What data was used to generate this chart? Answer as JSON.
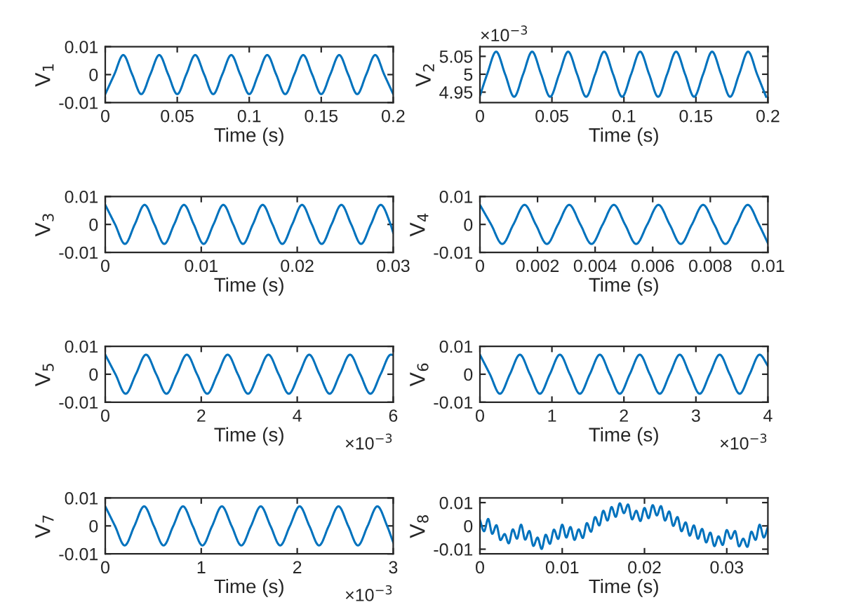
{
  "chart_data": [
    {
      "type": "line",
      "xlabel": "Time (s)",
      "ylabel": "V$_{1}$",
      "color": "#0072bd",
      "xlim": [
        0,
        0.2
      ],
      "ylim": [
        -0.01,
        0.01
      ],
      "xticks": [
        0,
        0.05,
        0.1,
        0.15,
        0.2
      ],
      "yticks": [
        -0.01,
        0,
        0.01
      ],
      "x": [
        0,
        0.00625,
        0.0125,
        0.01875,
        0.025,
        0.03125,
        0.0375,
        0.04375,
        0.05,
        0.05625,
        0.0625,
        0.06875,
        0.075,
        0.08125,
        0.0875,
        0.09375,
        0.1,
        0.10625,
        0.1125,
        0.11875,
        0.125,
        0.13125,
        0.1375,
        0.14375,
        0.15,
        0.15625,
        0.1625,
        0.16875,
        0.175,
        0.18125,
        0.1875,
        0.19375,
        0.2
      ],
      "values": [
        -0.007,
        0,
        0.007,
        0,
        -0.007,
        0,
        0.007,
        0,
        -0.007,
        0,
        0.007,
        0,
        -0.007,
        0,
        0.007,
        0,
        -0.007,
        0,
        0.007,
        0,
        -0.007,
        0,
        0.007,
        0,
        -0.007,
        0,
        0.007,
        0,
        -0.007,
        0,
        0.007,
        0,
        -0.007
      ]
    },
    {
      "type": "line",
      "xlabel": "Time (s)",
      "ylabel": "V$_{2}$",
      "color": "#0072bd",
      "xlim": [
        0,
        0.2
      ],
      "ylim": [
        4.921,
        5.077
      ],
      "xticks": [
        0,
        0.05,
        0.1,
        0.15,
        0.2
      ],
      "yticks": [
        4.95,
        5,
        5.05
      ],
      "annotations": [
        "×10$^{−3}$"
      ],
      "x": [
        0,
        0.005,
        0.01125,
        0.0175,
        0.02375,
        0.03,
        0.03625,
        0.0425,
        0.04875,
        0.055,
        0.06125,
        0.0675,
        0.07375,
        0.08,
        0.08625,
        0.0925,
        0.09875,
        0.105,
        0.11125,
        0.1175,
        0.12375,
        0.13,
        0.13625,
        0.1425,
        0.14875,
        0.155,
        0.16125,
        0.1675,
        0.17375,
        0.18,
        0.18625,
        0.1925,
        0.19875
      ],
      "values": [
        4.94,
        5,
        5.063,
        5,
        4.937,
        5,
        5.063,
        5,
        4.937,
        5,
        5.063,
        5,
        4.937,
        5,
        5.063,
        5,
        4.937,
        5,
        5.063,
        5,
        4.937,
        5,
        5.063,
        5,
        4.937,
        5,
        5.063,
        5,
        4.937,
        5,
        5.063,
        5,
        4.937
      ]
    },
    {
      "type": "line",
      "xlabel": "Time (s)",
      "ylabel": "V$_{3}$",
      "color": "#0072bd",
      "xlim": [
        0,
        0.03
      ],
      "ylim": [
        -0.01,
        0.01
      ],
      "xticks": [
        0,
        0.01,
        0.02,
        0.03
      ],
      "yticks": [
        -0.01,
        0,
        0.01
      ],
      "x": [
        0,
        0.001025,
        0.00205,
        0.003075,
        0.0041,
        0.005125,
        0.00615,
        0.007175,
        0.0082,
        0.009225,
        0.01025,
        0.011275,
        0.0123,
        0.013325,
        0.01435,
        0.015375,
        0.0164,
        0.017425,
        0.01845,
        0.019475,
        0.0205,
        0.021525,
        0.02255,
        0.023575,
        0.0246,
        0.025625,
        0.02665,
        0.027675,
        0.0287,
        0.029725,
        0.03
      ],
      "values": [
        0.007,
        0,
        -0.007,
        0,
        0.007,
        0,
        -0.007,
        0,
        0.007,
        0,
        -0.007,
        0,
        0.007,
        0,
        -0.007,
        0,
        0.007,
        0,
        -0.007,
        0,
        0.007,
        0,
        -0.007,
        0,
        0.007,
        0,
        -0.007,
        0,
        0.007,
        0,
        -0.003
      ]
    },
    {
      "type": "line",
      "xlabel": "Time (s)",
      "ylabel": "V$_{4}$",
      "color": "#0072bd",
      "xlim": [
        0,
        0.01
      ],
      "ylim": [
        -0.01,
        0.01
      ],
      "xticks": [
        0,
        0.002,
        0.004,
        0.006,
        0.008,
        0.01
      ],
      "yticks": [
        -0.01,
        0,
        0.01
      ],
      "x": [
        0,
        0.0003875,
        0.000775,
        0.0011625,
        0.00155,
        0.0019375,
        0.002325,
        0.0027125,
        0.0031,
        0.0034875,
        0.003875,
        0.0042625,
        0.00465,
        0.0050375,
        0.005425,
        0.0058125,
        0.0062,
        0.0065875,
        0.006975,
        0.0073625,
        0.00775,
        0.0081375,
        0.008525,
        0.0089125,
        0.0093,
        0.0096875,
        0.01
      ],
      "values": [
        0.007,
        0,
        -0.007,
        0,
        0.007,
        0,
        -0.007,
        0,
        0.007,
        0,
        -0.007,
        0,
        0.007,
        0,
        -0.007,
        0,
        0.007,
        0,
        -0.007,
        0,
        0.007,
        0,
        -0.007,
        0,
        0.007,
        0,
        -0.0067
      ]
    },
    {
      "type": "line",
      "xlabel": "Time (s)",
      "ylabel": "V$_{5}$",
      "color": "#0072bd",
      "xlim": [
        0,
        6
      ],
      "ylim": [
        -0.01,
        0.01
      ],
      "xticks": [
        0,
        2,
        4,
        6
      ],
      "yticks": [
        -0.01,
        0,
        0.01
      ],
      "annotations": [
        "×10$^{−3}$"
      ],
      "x": [
        0,
        0.2125,
        0.425,
        0.6375,
        0.85,
        1.0625,
        1.275,
        1.4875,
        1.7,
        1.9125,
        2.125,
        2.3375,
        2.55,
        2.7625,
        2.975,
        3.1875,
        3.4,
        3.6125,
        3.825,
        4.0375,
        4.25,
        4.4625,
        4.675,
        4.8875,
        5.1,
        5.3125,
        5.525,
        5.7375,
        5.95,
        6
      ],
      "values": [
        0.007,
        0,
        -0.007,
        0,
        0.007,
        0,
        -0.007,
        0,
        0.007,
        0,
        -0.007,
        0,
        0.007,
        0,
        -0.007,
        0,
        0.007,
        0,
        -0.007,
        0,
        0.007,
        0,
        -0.007,
        0,
        0.007,
        0,
        -0.007,
        0,
        0.007,
        0.0069
      ]
    },
    {
      "type": "line",
      "xlabel": "Time (s)",
      "ylabel": "V$_{6}$",
      "color": "#0072bd",
      "xlim": [
        0,
        4
      ],
      "ylim": [
        -0.01,
        0.01
      ],
      "xticks": [
        0,
        1,
        2,
        3,
        4
      ],
      "yticks": [
        -0.01,
        0,
        0.01
      ],
      "annotations": [
        "×10$^{−3}$"
      ],
      "x": [
        0,
        0.13875,
        0.2775,
        0.41625,
        0.555,
        0.69375,
        0.8325,
        0.97125,
        1.11,
        1.24875,
        1.3875,
        1.52625,
        1.665,
        1.80375,
        1.9425,
        2.08125,
        2.22,
        2.35875,
        2.4975,
        2.63625,
        2.775,
        2.91375,
        3.0525,
        3.19125,
        3.33,
        3.46875,
        3.6075,
        3.74625,
        3.885,
        4
      ],
      "values": [
        0.007,
        0,
        -0.007,
        0,
        0.007,
        0,
        -0.007,
        0,
        0.007,
        0,
        -0.007,
        0,
        0.007,
        0,
        -0.007,
        0,
        0.007,
        0,
        -0.007,
        0,
        0.007,
        0,
        -0.007,
        0,
        0.007,
        0,
        -0.007,
        0,
        0.007,
        0.003
      ]
    },
    {
      "type": "line",
      "xlabel": "Time (s)",
      "ylabel": "V$_{7}$",
      "color": "#0072bd",
      "xlim": [
        0,
        3
      ],
      "ylim": [
        -0.01,
        0.01
      ],
      "xticks": [
        0,
        1,
        2,
        3
      ],
      "yticks": [
        -0.01,
        0,
        0.01
      ],
      "annotations": [
        "×10$^{−3}$"
      ],
      "x": [
        0,
        0.10125,
        0.2025,
        0.30375,
        0.405,
        0.50625,
        0.6075,
        0.70875,
        0.81,
        0.91125,
        1.0125,
        1.11375,
        1.215,
        1.31625,
        1.4175,
        1.51875,
        1.62,
        1.72125,
        1.8225,
        1.92375,
        2.025,
        2.12625,
        2.2275,
        2.32875,
        2.43,
        2.53125,
        2.6325,
        2.73375,
        2.835,
        2.93625,
        3
      ],
      "values": [
        0.007,
        0,
        -0.007,
        0,
        0.007,
        0,
        -0.007,
        0,
        0.007,
        0,
        -0.007,
        0,
        0.007,
        0,
        -0.007,
        0,
        0.007,
        0,
        -0.007,
        0,
        0.007,
        0,
        -0.007,
        0,
        0.007,
        0,
        -0.007,
        0,
        0.007,
        0,
        -0.0059
      ]
    },
    {
      "type": "line",
      "xlabel": "Time (s)",
      "ylabel": "V$_{8}$",
      "color": "#0072bd",
      "xlim": [
        0,
        0.035
      ],
      "ylim": [
        -0.012,
        0.012
      ],
      "xticks": [
        0,
        0.01,
        0.02,
        0.03
      ],
      "yticks": [
        -0.01,
        0,
        0.01
      ],
      "x": [
        0,
        0.0005,
        0.001,
        0.0015,
        0.002,
        0.0025,
        0.003,
        0.0035,
        0.004,
        0.0045,
        0.005,
        0.0055,
        0.006,
        0.0065,
        0.007,
        0.0075,
        0.008,
        0.0085,
        0.009,
        0.0095,
        0.01,
        0.0105,
        0.011,
        0.0115,
        0.012,
        0.0125,
        0.013,
        0.0135,
        0.014,
        0.0145,
        0.015,
        0.0155,
        0.016,
        0.0165,
        0.017,
        0.0175,
        0.018,
        0.0185,
        0.019,
        0.0195,
        0.02,
        0.0205,
        0.021,
        0.0215,
        0.022,
        0.0225,
        0.023,
        0.0235,
        0.024,
        0.0245,
        0.025,
        0.0255,
        0.026,
        0.0265,
        0.027,
        0.0275,
        0.028,
        0.0285,
        0.029,
        0.0295,
        0.03,
        0.0305,
        0.031,
        0.0315,
        0.032,
        0.0325,
        0.033,
        0.0335,
        0.034,
        0.0345,
        0.035
      ],
      "values": [
        0.0025,
        -0.0023,
        0.003,
        -0.0034,
        0.0003,
        -0.0061,
        -0.0035,
        -0.0075,
        -0.0015,
        -0.0055,
        0.0005,
        -0.0059,
        -0.0022,
        -0.0086,
        -0.005,
        -0.0099,
        -0.0038,
        -0.0077,
        -0.0016,
        -0.0056,
        0.0005,
        -0.005,
        -0.0005,
        -0.006,
        -0.0015,
        -0.0052,
        0.0012,
        -0.0025,
        0.0038,
        0.0002,
        0.0065,
        0.0023,
        0.0081,
        0.0039,
        0.0097,
        0.0055,
        0.0092,
        0.0028,
        0.0065,
        0.0021,
        0.0077,
        0.0033,
        0.0089,
        0.0045,
        0.0085,
        0.0023,
        0.0062,
        0,
        0.0038,
        -0.0023,
        0.0015,
        -0.0042,
        0.0002,
        -0.0055,
        -0.0013,
        -0.0071,
        -0.0029,
        -0.0087,
        -0.0045,
        -0.0082,
        -0.0018,
        -0.0055,
        -0.0022,
        -0.0088,
        -0.0055,
        -0.009,
        -0.0025,
        -0.006,
        0.0005,
        -0.005,
        -0.0005
      ]
    }
  ]
}
